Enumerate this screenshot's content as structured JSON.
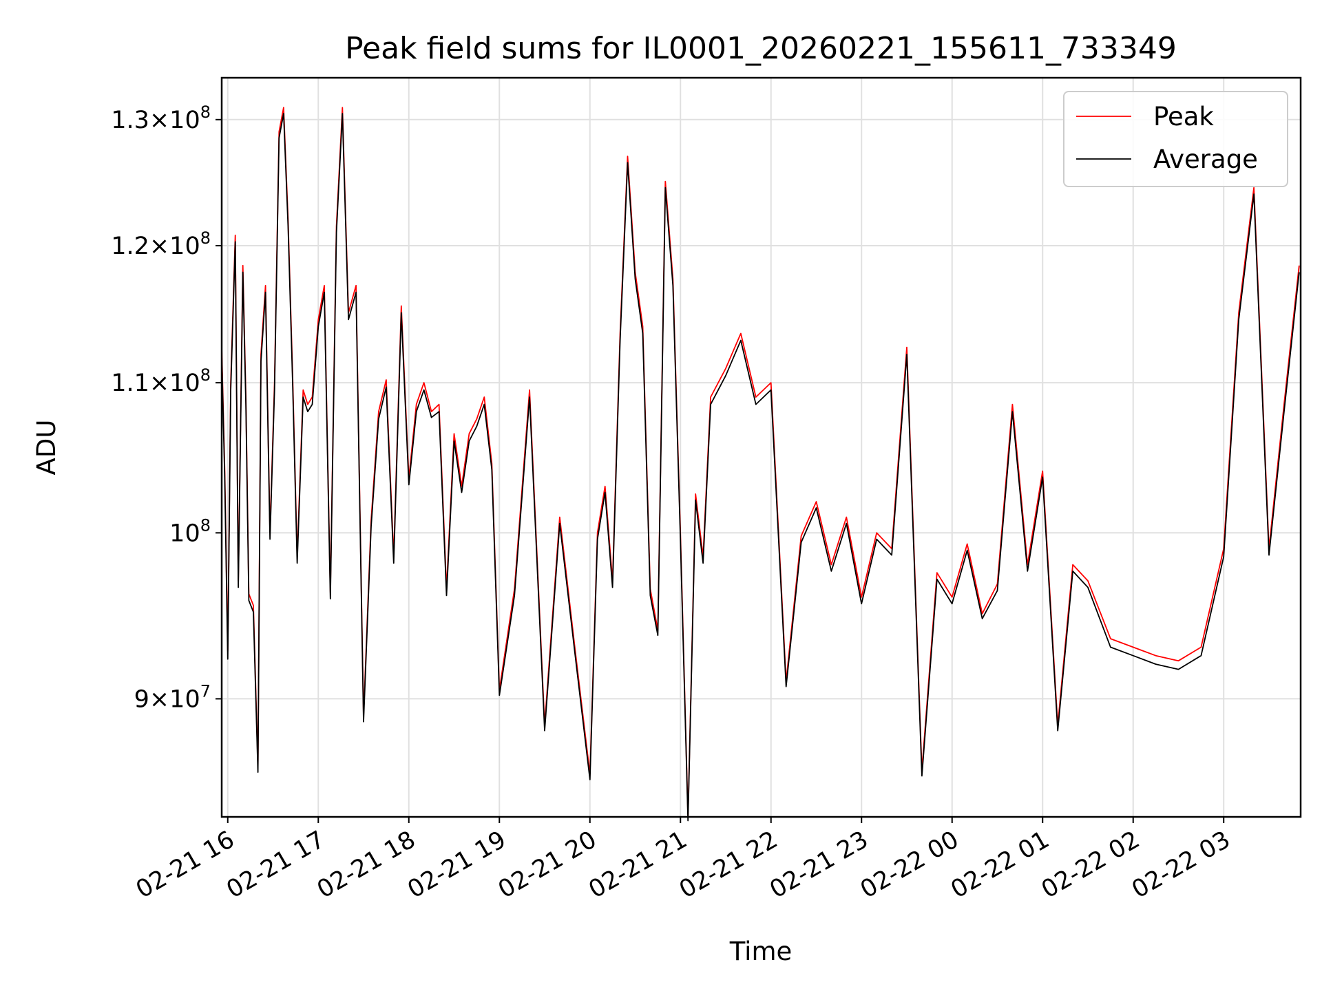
{
  "chart_data": {
    "type": "line",
    "title": "Peak field sums for IL0001_20260221_155611_733349",
    "xlabel": "Time",
    "ylabel": "ADU",
    "y_scale": "log",
    "ylim": [
      83500000,
      133500000
    ],
    "xlim": [
      "2026-02-21 15:56",
      "2026-02-22 03:51"
    ],
    "grid": true,
    "legend_position": "top-right",
    "x_ticks": [
      {
        "t": "2026-02-21 16:00",
        "label": "02-21 16"
      },
      {
        "t": "2026-02-21 17:00",
        "label": "02-21 17"
      },
      {
        "t": "2026-02-21 18:00",
        "label": "02-21 18"
      },
      {
        "t": "2026-02-21 19:00",
        "label": "02-21 19"
      },
      {
        "t": "2026-02-21 20:00",
        "label": "02-21 20"
      },
      {
        "t": "2026-02-21 21:00",
        "label": "02-21 21"
      },
      {
        "t": "2026-02-21 22:00",
        "label": "02-21 22"
      },
      {
        "t": "2026-02-21 23:00",
        "label": "02-21 23"
      },
      {
        "t": "2026-02-22 00:00",
        "label": "02-22 00"
      },
      {
        "t": "2026-02-22 01:00",
        "label": "02-22 01"
      },
      {
        "t": "2026-02-22 02:00",
        "label": "02-22 02"
      },
      {
        "t": "2026-02-22 03:00",
        "label": "02-22 03"
      }
    ],
    "y_ticks": [
      {
        "v": 90000000,
        "mant": "9",
        "exp": "7"
      },
      {
        "v": 100000000,
        "mant": "",
        "exp": "8"
      },
      {
        "v": 110000000,
        "mant": "1.1",
        "exp": "8"
      },
      {
        "v": 120000000,
        "mant": "1.2",
        "exp": "8"
      },
      {
        "v": 130000000,
        "mant": "1.3",
        "exp": "8"
      }
    ],
    "x": [
      "2026-02-21 15:56",
      "2026-02-21 15:58",
      "2026-02-21 16:00",
      "2026-02-21 16:02",
      "2026-02-21 16:05",
      "2026-02-21 16:07",
      "2026-02-21 16:10",
      "2026-02-21 16:12",
      "2026-02-21 16:14",
      "2026-02-21 16:17",
      "2026-02-21 16:20",
      "2026-02-21 16:22",
      "2026-02-21 16:25",
      "2026-02-21 16:28",
      "2026-02-21 16:31",
      "2026-02-21 16:34",
      "2026-02-21 16:37",
      "2026-02-21 16:40",
      "2026-02-21 16:43",
      "2026-02-21 16:46",
      "2026-02-21 16:50",
      "2026-02-21 16:53",
      "2026-02-21 16:56",
      "2026-02-21 17:00",
      "2026-02-21 17:04",
      "2026-02-21 17:08",
      "2026-02-21 17:12",
      "2026-02-21 17:16",
      "2026-02-21 17:20",
      "2026-02-21 17:25",
      "2026-02-21 17:30",
      "2026-02-21 17:35",
      "2026-02-21 17:40",
      "2026-02-21 17:45",
      "2026-02-21 17:50",
      "2026-02-21 17:55",
      "2026-02-21 18:00",
      "2026-02-21 18:05",
      "2026-02-21 18:10",
      "2026-02-21 18:15",
      "2026-02-21 18:20",
      "2026-02-21 18:25",
      "2026-02-21 18:30",
      "2026-02-21 18:35",
      "2026-02-21 18:40",
      "2026-02-21 18:45",
      "2026-02-21 18:50",
      "2026-02-21 18:55",
      "2026-02-21 19:00",
      "2026-02-21 19:10",
      "2026-02-21 19:20",
      "2026-02-21 19:30",
      "2026-02-21 19:40",
      "2026-02-21 19:50",
      "2026-02-21 20:00",
      "2026-02-21 20:05",
      "2026-02-21 20:10",
      "2026-02-21 20:15",
      "2026-02-21 20:20",
      "2026-02-21 20:25",
      "2026-02-21 20:30",
      "2026-02-21 20:35",
      "2026-02-21 20:40",
      "2026-02-21 20:45",
      "2026-02-21 20:50",
      "2026-02-21 20:55",
      "2026-02-21 21:00",
      "2026-02-21 21:05",
      "2026-02-21 21:10",
      "2026-02-21 21:15",
      "2026-02-21 21:20",
      "2026-02-21 21:30",
      "2026-02-21 21:40",
      "2026-02-21 21:50",
      "2026-02-21 22:00",
      "2026-02-21 22:10",
      "2026-02-21 22:20",
      "2026-02-21 22:30",
      "2026-02-21 22:40",
      "2026-02-21 22:50",
      "2026-02-21 23:00",
      "2026-02-21 23:10",
      "2026-02-21 23:20",
      "2026-02-21 23:30",
      "2026-02-21 23:40",
      "2026-02-21 23:50",
      "2026-02-22 00:00",
      "2026-02-22 00:10",
      "2026-02-22 00:20",
      "2026-02-22 00:30",
      "2026-02-22 00:40",
      "2026-02-22 00:50",
      "2026-02-22 01:00",
      "2026-02-22 01:10",
      "2026-02-22 01:20",
      "2026-02-22 01:30",
      "2026-02-22 01:45",
      "2026-02-22 02:00",
      "2026-02-22 02:15",
      "2026-02-22 02:30",
      "2026-02-22 02:45",
      "2026-02-22 03:00",
      "2026-02-22 03:10",
      "2026-02-22 03:20",
      "2026-02-22 03:30",
      "2026-02-22 03:40",
      "2026-02-22 03:50"
    ],
    "series": [
      {
        "name": "Peak",
        "color": "#ff0000",
        "values": [
          112500000,
          104000000,
          92800000,
          110000000,
          120800000,
          97000000,
          118500000,
          109000000,
          96200000,
          95500000,
          86200000,
          112000000,
          117000000,
          100000000,
          110000000,
          129000000,
          131000000,
          122000000,
          110500000,
          98500000,
          109500000,
          108500000,
          109000000,
          114500000,
          117000000,
          96300000,
          121500000,
          131000000,
          115000000,
          117000000,
          89000000,
          100800000,
          108000000,
          110200000,
          98500000,
          115500000,
          103500000,
          108500000,
          110000000,
          108000000,
          108500000,
          96500000,
          106500000,
          103000000,
          106500000,
          107500000,
          109000000,
          104500000,
          90500000,
          96500000,
          109500000,
          88500000,
          101000000,
          93000000,
          85800000,
          100000000,
          103000000,
          97000000,
          113500000,
          127000000,
          118000000,
          114000000,
          96500000,
          94000000,
          125000000,
          117500000,
          100000000,
          83500000,
          102500000,
          98500000,
          109000000,
          111000000,
          113500000,
          109000000,
          110000000,
          91000000,
          99800000,
          102000000,
          98000000,
          101000000,
          96000000,
          100000000,
          99000000,
          112500000,
          86000000,
          97500000,
          96000000,
          99300000,
          95000000,
          96800000,
          108500000,
          98000000,
          104000000,
          88500000,
          98000000,
          97000000,
          93500000,
          93000000,
          92500000,
          92200000,
          93000000,
          99000000,
          115000000,
          124500000,
          99000000,
          108500000,
          118500000
        ]
      },
      {
        "name": "Average",
        "color": "#000000",
        "values": [
          112000000,
          103500000,
          92300000,
          109500000,
          120300000,
          96600000,
          118000000,
          108500000,
          95800000,
          95100000,
          85900000,
          111500000,
          116500000,
          99600000,
          109500000,
          128500000,
          130500000,
          121500000,
          110000000,
          98100000,
          109000000,
          108000000,
          108500000,
          114000000,
          116500000,
          95900000,
          121000000,
          130500000,
          114500000,
          116500000,
          88700000,
          100400000,
          107500000,
          109700000,
          98100000,
          115000000,
          103100000,
          108000000,
          109500000,
          107600000,
          108000000,
          96100000,
          106000000,
          102600000,
          106000000,
          107000000,
          108500000,
          104100000,
          90200000,
          96100000,
          109000000,
          88200000,
          100600000,
          92700000,
          85500000,
          99600000,
          102600000,
          96600000,
          113000000,
          126500000,
          117500000,
          113500000,
          96100000,
          93700000,
          124500000,
          117000000,
          99600000,
          83300000,
          102100000,
          98100000,
          108500000,
          110500000,
          113000000,
          108500000,
          109500000,
          90700000,
          99400000,
          101600000,
          97600000,
          100600000,
          95600000,
          99600000,
          98600000,
          112000000,
          85700000,
          97100000,
          95600000,
          98900000,
          94700000,
          96400000,
          108000000,
          97600000,
          103600000,
          88200000,
          97600000,
          96600000,
          93000000,
          92500000,
          92000000,
          91700000,
          92500000,
          98500000,
          114500000,
          124000000,
          98600000,
          108000000,
          118000000
        ]
      }
    ]
  }
}
